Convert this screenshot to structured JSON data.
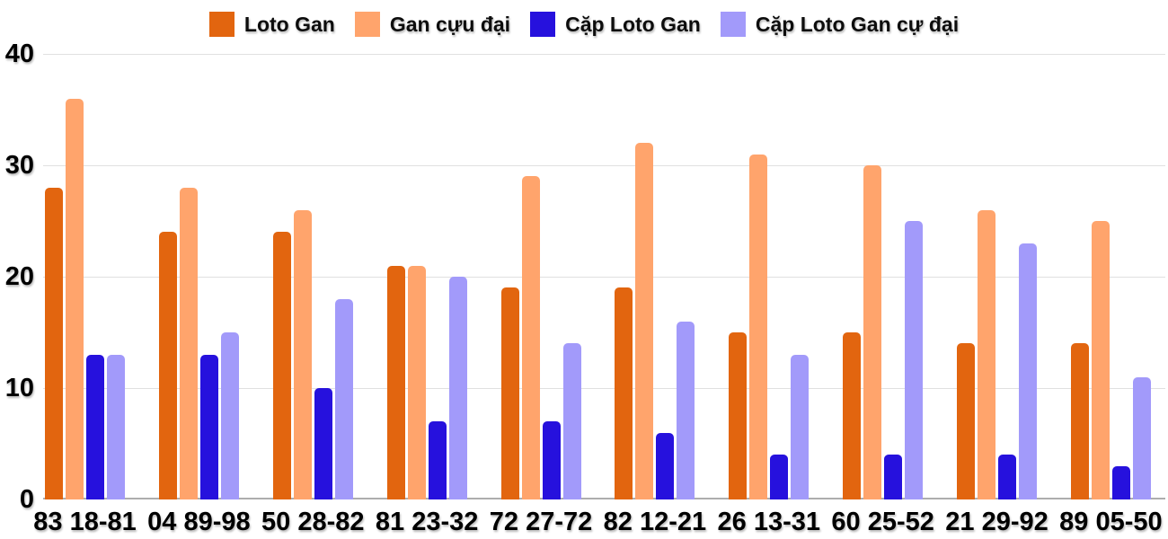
{
  "chart_data": {
    "type": "bar",
    "title": "",
    "xlabel": "",
    "ylabel": "",
    "categories": [
      "83 18-81",
      "04 89-98",
      "50 28-82",
      "81 23-32",
      "72 27-72",
      "82 12-21",
      "26 13-31",
      "60 25-52",
      "21 29-92",
      "89 05-50"
    ],
    "series": [
      {
        "name": "Loto Gan",
        "color": "#E2650F",
        "values": [
          28,
          24,
          24,
          21,
          19,
          19,
          15,
          15,
          14,
          14
        ]
      },
      {
        "name": "Gan cựu đại",
        "color": "#FFA46C",
        "values": [
          36,
          28,
          26,
          21,
          29,
          32,
          31,
          30,
          26,
          25
        ]
      },
      {
        "name": "Cặp Loto Gan",
        "color": "#2611DD",
        "values": [
          13,
          13,
          10,
          7,
          7,
          6,
          4,
          4,
          4,
          3
        ]
      },
      {
        "name": "Cặp Loto Gan cự đại",
        "color": "#A29AFA",
        "values": [
          13,
          15,
          18,
          20,
          14,
          16,
          13,
          25,
          23,
          11
        ]
      }
    ],
    "y_ticks": [
      "0",
      "10",
      "20",
      "30",
      "40"
    ],
    "ylim": [
      0,
      40
    ],
    "legend_position": "top",
    "grid": true,
    "colors": {
      "background": "#FFFFFF",
      "gridline": "#E0E0E0",
      "axis_baseline": "#ADADAD",
      "label_text": "#000000"
    }
  }
}
